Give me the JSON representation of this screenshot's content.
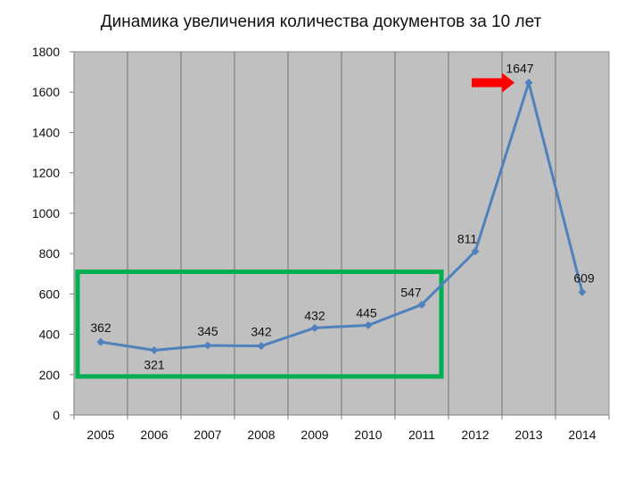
{
  "chart_data": {
    "type": "line",
    "title": "Динамика увеличения количества документов за 10 лет",
    "categories": [
      "2005",
      "2006",
      "2007",
      "2008",
      "2009",
      "2010",
      "2011",
      "2012",
      "2013",
      "2014"
    ],
    "series": [
      {
        "values": [
          362,
          321,
          345,
          342,
          432,
          445,
          547,
          811,
          1647,
          609
        ],
        "color": "#4F81BD"
      }
    ],
    "ylim": [
      0,
      1800
    ],
    "yticks": [
      "0",
      "200",
      "400",
      "600",
      "800",
      "1000",
      "1200",
      "1400",
      "1600",
      "1800"
    ],
    "data_labels": [
      "362",
      "321",
      "345",
      "342",
      "432",
      "445",
      "547",
      "811",
      "1647",
      "609"
    ],
    "grid": "vertical",
    "plot_background": "#C0C0C0",
    "highlight_box": {
      "from_category": "2005",
      "to_category": "2011",
      "color": "#00B050"
    },
    "annotation_arrow": {
      "target_category": "2013",
      "color": "#FF0000"
    }
  }
}
